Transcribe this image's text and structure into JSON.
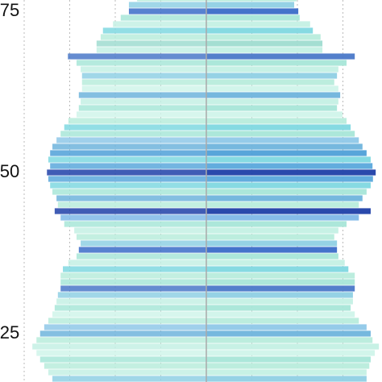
{
  "chart_data": {
    "type": "pyramid",
    "y": [
      77,
      76,
      75,
      74,
      73,
      72,
      71,
      70,
      69,
      68,
      67,
      66,
      65,
      64,
      63,
      62,
      61,
      60,
      59,
      58,
      57,
      56,
      55,
      54,
      53,
      52,
      51,
      50,
      49,
      48,
      47,
      46,
      45,
      44,
      43,
      42,
      41,
      40,
      39,
      38,
      37,
      36,
      35,
      34,
      33,
      32,
      31,
      30,
      29,
      28,
      27,
      26,
      25,
      24,
      23,
      22,
      21,
      20,
      19,
      18
    ],
    "series": [
      {
        "side": "left",
        "values": [
          1.52,
          1.7,
          1.7,
          1.88,
          2.05,
          2.27,
          2.32,
          2.41,
          2.41,
          3.04,
          2.85,
          2.76,
          2.73,
          2.73,
          2.73,
          2.8,
          2.76,
          2.8,
          2.85,
          3.03,
          3.12,
          3.2,
          3.29,
          3.38,
          3.43,
          3.47,
          3.43,
          3.5,
          3.47,
          3.43,
          3.38,
          3.29,
          3.26,
          3.33,
          3.2,
          3.12,
          2.9,
          2.85,
          2.76,
          2.8,
          2.85,
          3.03,
          3.15,
          3.2,
          3.2,
          3.2,
          3.26,
          3.29,
          3.33,
          3.38,
          3.47,
          3.56,
          3.65,
          3.73,
          3.82,
          3.73,
          3.65,
          3.56,
          3.47,
          3.38
        ]
      },
      {
        "side": "right",
        "values": [
          1.98,
          1.93,
          2.02,
          2.05,
          2.28,
          2.34,
          2.51,
          2.55,
          2.55,
          3.26,
          3.08,
          2.9,
          2.87,
          2.81,
          2.9,
          2.94,
          2.9,
          2.87,
          2.99,
          3.08,
          3.17,
          3.26,
          3.35,
          3.43,
          3.52,
          3.61,
          3.65,
          3.72,
          3.66,
          3.61,
          3.52,
          3.43,
          3.35,
          3.61,
          3.35,
          3.08,
          2.9,
          2.81,
          2.87,
          2.87,
          2.9,
          3.04,
          3.12,
          3.26,
          3.26,
          3.26,
          3.22,
          3.22,
          3.17,
          3.26,
          3.35,
          3.52,
          3.61,
          3.65,
          3.79,
          3.7,
          3.61,
          3.58,
          3.52,
          3.52
        ]
      }
    ],
    "colors": [
      "#b8ecdc",
      "#8fd0e4",
      "#3a6cc8",
      "#a8e6d8",
      "#c4f0e4",
      "#7fd8e0",
      "#b8ecdc",
      "#9fdcd0",
      "#c4f0e4",
      "#4a78c8",
      "#a8e6d8",
      "#c4f0e4",
      "#8fd0e4",
      "#b8ecdc",
      "#d0f4ea",
      "#6fb4dc",
      "#c4f0e4",
      "#a8e6d8",
      "#d0f4ea",
      "#b8ecdc",
      "#7fd8e0",
      "#a8e6d8",
      "#8fc8e8",
      "#6fb4dc",
      "#4fa0d8",
      "#7fd8e0",
      "#5aa8dc",
      "#1f3fa8",
      "#5aa8dc",
      "#7fd8e0",
      "#a8e6d8",
      "#6fb4dc",
      "#b8ecdc",
      "#1f3fa8",
      "#7fb8e8",
      "#a8e6d8",
      "#c4f0e4",
      "#b8ecdc",
      "#8fd0e4",
      "#3a6cc8",
      "#a8e6d8",
      "#c4f0e4",
      "#7fd8e0",
      "#b8ecdc",
      "#a8e6d8",
      "#4a78c8",
      "#8fd0e4",
      "#c4f0e4",
      "#a8e6d8",
      "#d0f4ea",
      "#b8ecdc",
      "#8fc8e8",
      "#6fb4dc",
      "#b8ecdc",
      "#c4f0e4",
      "#d0f4ea",
      "#a8e6d8",
      "#b8ecdc",
      "#c4f0e4",
      "#8fd0e4"
    ],
    "xlim": [
      -4,
      4
    ],
    "xticks": [
      -4,
      -3,
      -2,
      -1,
      1,
      2,
      3
    ],
    "ylim": [
      17.5,
      76.75
    ],
    "yticks": [
      25,
      50,
      75
    ],
    "grid": true
  }
}
